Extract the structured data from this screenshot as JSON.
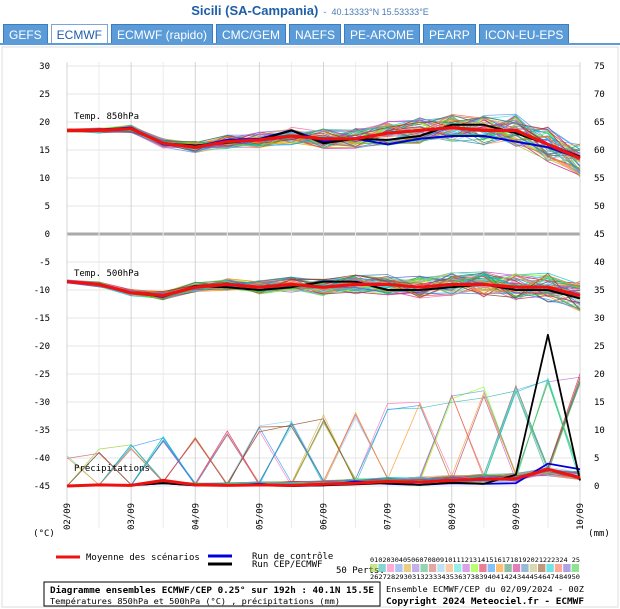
{
  "header": {
    "title": "Sicili (SA-Campania)",
    "separator": "-",
    "coords": "40.13333°N 15.53333°E"
  },
  "tabs": [
    {
      "label": "GEFS",
      "active": false
    },
    {
      "label": "ECMWF",
      "active": true
    },
    {
      "label": "ECMWF (rapido)",
      "active": false
    },
    {
      "label": "CMC/GEM",
      "active": false
    },
    {
      "label": "NAEFS",
      "active": false
    },
    {
      "label": "PE-AROME",
      "active": false
    },
    {
      "label": "PEARP",
      "active": false
    },
    {
      "label": "ICON-EU-EPS",
      "active": false
    }
  ],
  "chart_data": {
    "type": "line",
    "x_ticks": [
      "02/09",
      "03/09",
      "04/09",
      "05/09",
      "06/09",
      "07/09",
      "08/09",
      "09/09",
      "10/09"
    ],
    "x_range_hours": [
      0,
      192
    ],
    "left_ticks": [
      "30",
      "25",
      "20",
      "15",
      "10",
      "5",
      "0",
      "-5",
      "-10",
      "-15",
      "-20",
      "-25",
      "-30",
      "-35",
      "-40",
      "-45"
    ],
    "right_ticks": [
      "75",
      "70",
      "65",
      "60",
      "55",
      "50",
      "45",
      "40",
      "35",
      "30",
      "25",
      "20",
      "15",
      "10",
      "5",
      "0"
    ],
    "left_unit": "(°C)",
    "right_unit": "(mm)",
    "panel_labels": {
      "t850": "Temp. 850hPa",
      "t500": "Temp. 500hPa",
      "precip": "Précipitations"
    },
    "series": {
      "t850_mean": {
        "name": "Moyenne des scénarios",
        "x": [
          0,
          12,
          24,
          36,
          48,
          60,
          72,
          84,
          96,
          108,
          120,
          132,
          144,
          156,
          168,
          180,
          192
        ],
        "y": [
          18.5,
          18.5,
          18.8,
          16.2,
          15.5,
          16.5,
          16.8,
          17.5,
          17,
          17,
          18,
          18.5,
          19,
          18.5,
          18.5,
          16,
          13.5
        ]
      },
      "t850_control": {
        "name": "Run de contrôle",
        "x": [
          0,
          12,
          24,
          36,
          48,
          60,
          72,
          84,
          96,
          108,
          120,
          132,
          144,
          156,
          168,
          180,
          192
        ],
        "y": [
          18.5,
          18.6,
          19,
          16,
          15.6,
          16.8,
          17,
          18.5,
          16.5,
          17,
          16,
          17,
          17.5,
          17.5,
          16.5,
          15.5,
          13.5
        ]
      },
      "t850_oper": {
        "name": "Run CEP/ECMWF",
        "x": [
          0,
          12,
          24,
          36,
          48,
          60,
          72,
          84,
          96,
          108,
          120,
          132,
          144,
          156,
          168,
          180,
          192
        ],
        "y": [
          18.5,
          18.6,
          18.9,
          16.2,
          15.8,
          16.3,
          16.8,
          18.5,
          16.2,
          17,
          16.8,
          17.5,
          19.5,
          19.5,
          18,
          16,
          13.8
        ]
      },
      "t500_mean": {
        "name": "Moyenne des scénarios",
        "x": [
          0,
          12,
          24,
          36,
          48,
          60,
          72,
          84,
          96,
          108,
          120,
          132,
          144,
          156,
          168,
          180,
          192
        ],
        "y": [
          -8.5,
          -9,
          -10.5,
          -11,
          -9.5,
          -9,
          -9.5,
          -9,
          -9.5,
          -9,
          -9,
          -9.5,
          -9,
          -9,
          -9.5,
          -9.5,
          -11
        ]
      },
      "t500_oper": {
        "name": "Run CEP/ECMWF",
        "x": [
          0,
          12,
          24,
          36,
          48,
          60,
          72,
          84,
          96,
          108,
          120,
          132,
          144,
          156,
          168,
          180,
          192
        ],
        "y": [
          -8.5,
          -9,
          -10.5,
          -11.2,
          -9.3,
          -9.5,
          -10,
          -9.5,
          -8.5,
          -8.5,
          -10,
          -10,
          -9.5,
          -9,
          -10,
          -10,
          -11.5
        ]
      },
      "precip_oper": {
        "name": "Run CEP/ECMWF",
        "x": [
          0,
          12,
          24,
          36,
          48,
          60,
          72,
          84,
          96,
          108,
          120,
          132,
          144,
          156,
          168,
          180,
          192
        ],
        "y": [
          0,
          0.2,
          0.1,
          0.5,
          0.1,
          0.1,
          0.1,
          0,
          0.1,
          0.3,
          0.5,
          0.2,
          0.6,
          0.4,
          2,
          27,
          1
        ]
      },
      "precip_control": {
        "name": "Run de contrôle",
        "x": [
          0,
          12,
          24,
          36,
          48,
          60,
          72,
          84,
          96,
          108,
          120,
          132,
          144,
          156,
          168,
          180,
          192
        ],
        "y": [
          0,
          0.2,
          0.1,
          0.5,
          0.1,
          0.1,
          0.4,
          0,
          0.1,
          0.8,
          0.4,
          0.2,
          0.5,
          0.4,
          0.5,
          4,
          3
        ]
      },
      "precip_mean": {
        "name": "Moyenne des scénarios",
        "x": [
          0,
          12,
          24,
          36,
          48,
          60,
          72,
          84,
          96,
          108,
          120,
          132,
          144,
          156,
          168,
          180,
          192
        ],
        "y": [
          0,
          0.2,
          0.1,
          1,
          0.2,
          0.1,
          0.2,
          0.1,
          0.3,
          0.5,
          0.8,
          0.7,
          1,
          1.2,
          1.3,
          3,
          1.5
        ]
      }
    },
    "ensemble_members": 50
  },
  "legend": {
    "mean": "Moyenne des scénarios",
    "control": "Run de contrôle",
    "oper": "Run CEP/ECMWF",
    "perts": "50 Perts.",
    "perts_row1": "010203040506070809101112131415161718192021222324 25",
    "perts_row2": "26272829303132333435363738394041424344454647484950",
    "ensemble_info": "Ensemble ECMWF/CEP du 02/09/2024 - 00Z",
    "copyright": "Copyright 2024 Meteociel.fr - ECMWF"
  },
  "footer": {
    "line1": "Diagramme ensembles ECMWF/CEP 0.25° sur 192h : 40.1N 15.5E",
    "line2": "Températures 850hPa et 500hPa (°C) , précipitations (mm)"
  },
  "colors": {
    "mean": "#ee1111",
    "control": "#0000dd",
    "oper": "#000000",
    "tab": "#5b9bd8",
    "title": "#1d5ea8"
  }
}
